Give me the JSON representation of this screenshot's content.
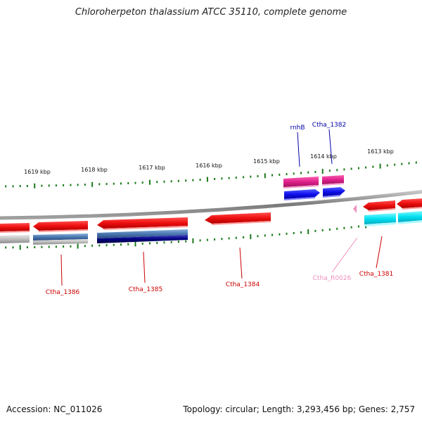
{
  "title": "Chloroherpeton thalassium ATCC 35110, complete genome",
  "footer": {
    "accession": "Accession: NC_011026",
    "summary": "Topology: circular; Length: 3,293,456 bp; Genes: 2,757"
  },
  "scale_labels": [
    "1619 kbp",
    "1618 kbp",
    "1617 kbp",
    "1616 kbp",
    "1615 kbp",
    "1614 kbp",
    "1613 kbp"
  ],
  "gene_labels": {
    "rnhB": "rnhB",
    "ctha_1382": "Ctha_1382",
    "ctha_1386": "Ctha_1386",
    "ctha_1385": "Ctha_1385",
    "ctha_1384": "Ctha_1384",
    "ctha_R0026": "Ctha_R0026",
    "ctha_1381": "Ctha_1381"
  },
  "colors": {
    "backbone": "#8a8a8a",
    "tick": "#1a7a1a",
    "cds": "#ee1111",
    "cds_label": "#cc0000",
    "forward_feature": "#e0208c",
    "forward_label": "#0000aa",
    "blue": "#1010ee",
    "cyan": "#00e0f0",
    "rna": "#f090c0",
    "grey": "#b8b8b8",
    "steel": "#4a78b0",
    "navy": "#000080"
  }
}
